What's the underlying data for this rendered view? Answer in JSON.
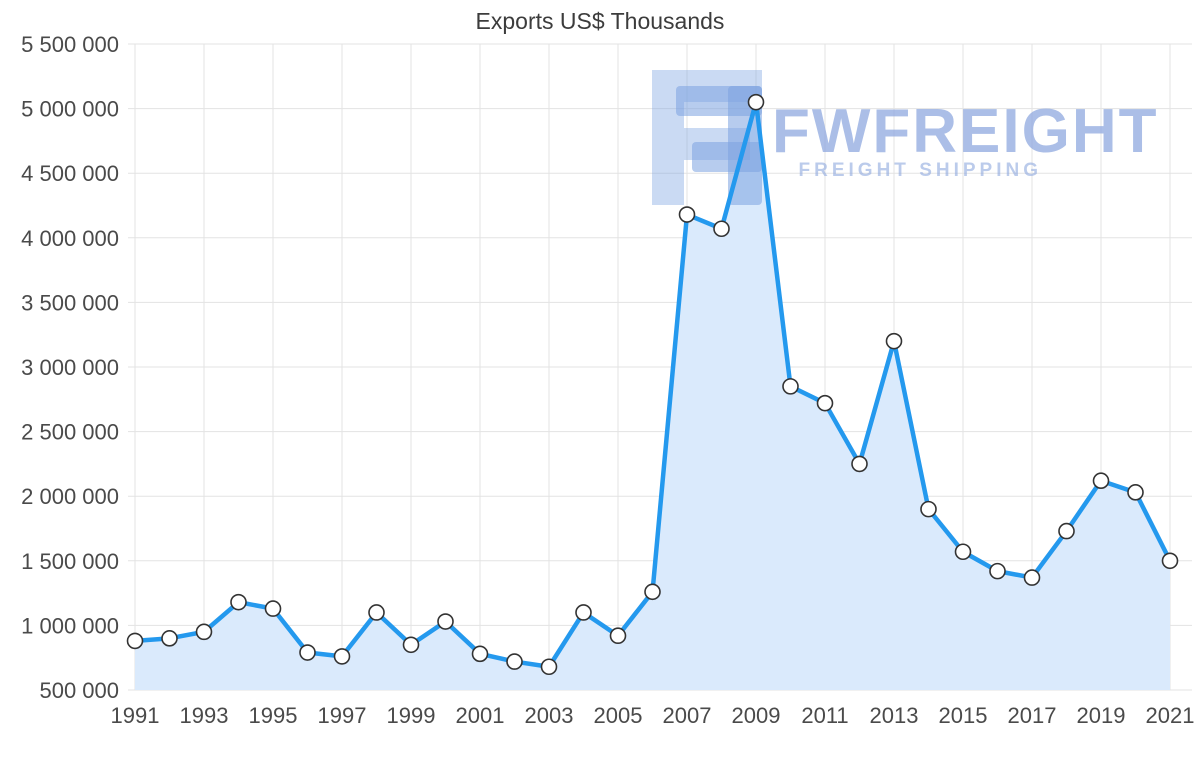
{
  "watermark": {
    "brand": "FWFREIGHT",
    "tagline": "FREIGHT SHIPPING"
  },
  "chart_data": {
    "type": "area",
    "title": "Exports US$ Thousands",
    "xlabel": "",
    "ylabel": "",
    "x": [
      1991,
      1992,
      1993,
      1994,
      1995,
      1996,
      1997,
      1998,
      1999,
      2000,
      2001,
      2002,
      2003,
      2004,
      2005,
      2006,
      2007,
      2008,
      2009,
      2010,
      2011,
      2012,
      2013,
      2014,
      2015,
      2016,
      2017,
      2018,
      2019,
      2020,
      2021
    ],
    "values": [
      880000,
      900000,
      950000,
      1180000,
      1130000,
      790000,
      760000,
      1100000,
      850000,
      1030000,
      780000,
      720000,
      680000,
      1100000,
      920000,
      1260000,
      4180000,
      4070000,
      5050000,
      2850000,
      2720000,
      2250000,
      3200000,
      1900000,
      1570000,
      1420000,
      1370000,
      1730000,
      2120000,
      2030000,
      1500000
    ],
    "series_name": "Exports US$ Thousands",
    "ylim": [
      500000,
      5500000
    ],
    "ytick_step": 500000,
    "ytick_labels": [
      "500 000",
      "1 000 000",
      "1 500 000",
      "2 000 000",
      "2 500 000",
      "3 000 000",
      "3 500 000",
      "4 000 000",
      "4 500 000",
      "5 000 000",
      "5 500 000"
    ],
    "xtick_labels": [
      "1991",
      "1993",
      "1995",
      "1997",
      "1999",
      "2001",
      "2003",
      "2005",
      "2007",
      "2009",
      "2011",
      "2013",
      "2015",
      "2017",
      "2019",
      "2021"
    ],
    "grid": true,
    "legend": "none",
    "colors": {
      "line": "#2499ee",
      "fill": "#daeafc",
      "marker_fill": "#ffffff",
      "marker_stroke": "#333333",
      "grid": "#e3e3e3",
      "tick_text": "#4a4a4a",
      "title_text": "#3c3c3c",
      "watermark_logo": "#7ba3e0",
      "watermark_text": "#8fa9df"
    }
  }
}
